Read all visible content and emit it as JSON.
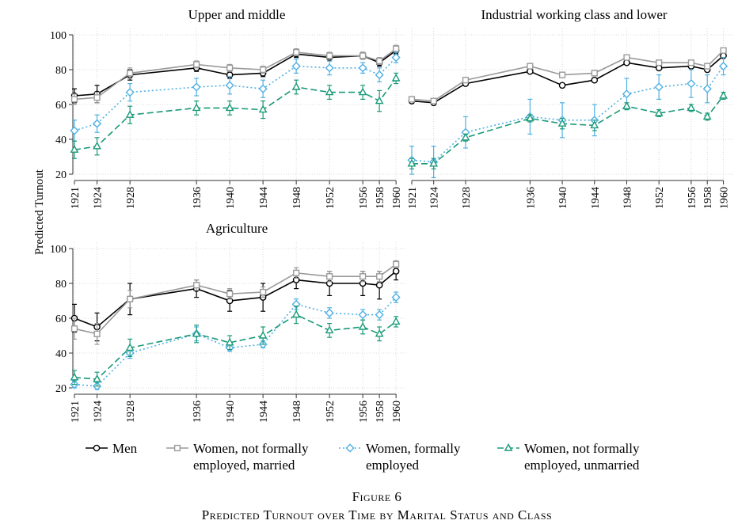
{
  "chart_data": {
    "type": "line",
    "y_axis_label": "Predicted Turnout",
    "y_ticks": [
      20,
      40,
      60,
      80,
      100
    ],
    "ylim": [
      20,
      100
    ],
    "x_ticks": [
      "1921",
      "1924",
      "1928",
      "1936",
      "1940",
      "1944",
      "1948",
      "1952",
      "1956",
      "1958",
      "1960"
    ],
    "series_styles": [
      {
        "name": "Men",
        "color": "#000000",
        "marker": "circle",
        "dash": "solid"
      },
      {
        "name": "Women, not formally employed, married",
        "color": "#9a9a9a",
        "marker": "square",
        "dash": "solid"
      },
      {
        "name": "Women, formally employed",
        "color": "#4fb0e2",
        "marker": "diamond",
        "dash": "dotted"
      },
      {
        "name": "Women, not formally employed, unmarried",
        "color": "#1a9a78",
        "marker": "triangle",
        "dash": "dashed"
      }
    ],
    "panels": [
      {
        "title": "Upper and middle",
        "series": [
          {
            "name": "Men",
            "values": [
              65,
              66,
              77,
              81,
              77,
              78,
              89,
              87,
              88,
              84,
              91
            ],
            "errors": [
              4,
              5,
              3,
              2,
              2,
              2,
              2,
              2,
              2,
              2,
              2
            ]
          },
          {
            "name": "Women, not formally employed, married",
            "values": [
              63,
              64,
              78,
              83,
              81,
              80,
              90,
              88,
              88,
              85,
              92
            ],
            "errors": [
              3,
              3,
              3,
              2,
              2,
              2,
              2,
              2,
              2,
              2,
              2
            ]
          },
          {
            "name": "Women, formally employed",
            "values": [
              45,
              49,
              67,
              70,
              71,
              69,
              82,
              81,
              81,
              77,
              87
            ],
            "errors": [
              6,
              5,
              5,
              5,
              5,
              5,
              4,
              4,
              3,
              4,
              3
            ]
          },
          {
            "name": "Women, not formally employed, unmarried",
            "values": [
              34,
              36,
              54,
              58,
              58,
              57,
              70,
              67,
              67,
              62,
              75
            ],
            "errors": [
              5,
              5,
              5,
              4,
              4,
              5,
              4,
              4,
              4,
              6,
              3
            ]
          }
        ]
      },
      {
        "title": "Industrial working class and lower",
        "series": [
          {
            "name": "Men",
            "values": [
              62,
              61,
              72,
              79,
              71,
              74,
              84,
              81,
              82,
              80,
              88
            ],
            "errors": [
              1,
              1,
              1,
              1,
              1,
              1,
              1,
              1,
              1,
              1,
              1
            ]
          },
          {
            "name": "Women, not formally employed, married",
            "values": [
              63,
              62,
              74,
              82,
              77,
              78,
              87,
              84,
              84,
              82,
              91
            ],
            "errors": [
              1,
              1,
              1,
              1,
              1,
              1,
              1,
              1,
              1,
              1,
              1
            ]
          },
          {
            "name": "Women, formally employed",
            "values": [
              28,
              27,
              44,
              53,
              51,
              51,
              66,
              70,
              72,
              69,
              82
            ],
            "errors": [
              8,
              9,
              9,
              10,
              10,
              9,
              9,
              7,
              8,
              8,
              5
            ]
          },
          {
            "name": "Women, not formally employed, unmarried",
            "values": [
              26,
              26,
              41,
              52,
              49,
              48,
              59,
              55,
              58,
              53,
              65
            ],
            "errors": [
              3,
              3,
              2,
              2,
              3,
              3,
              2,
              2,
              2,
              2,
              2
            ]
          }
        ]
      },
      {
        "title": "Agriculture",
        "series": [
          {
            "name": "Men",
            "values": [
              60,
              55,
              71,
              77,
              70,
              72,
              82,
              80,
              80,
              79,
              87
            ],
            "errors": [
              8,
              8,
              9,
              5,
              6,
              8,
              5,
              7,
              7,
              8,
              5
            ]
          },
          {
            "name": "Women, not formally employed, married",
            "values": [
              54,
              51,
              71,
              79,
              74,
              75,
              86,
              84,
              84,
              84,
              91
            ],
            "errors": [
              6,
              6,
              5,
              3,
              3,
              3,
              3,
              3,
              3,
              3,
              2
            ]
          },
          {
            "name": "Women, formally employed",
            "values": [
              22,
              21,
              40,
              51,
              43,
              45,
              68,
              63,
              62,
              62,
              72
            ],
            "errors": [
              2,
              2,
              3,
              4,
              2,
              2,
              3,
              3,
              3,
              3,
              3
            ]
          },
          {
            "name": "Women, not formally employed, unmarried",
            "values": [
              26,
              25,
              43,
              51,
              46,
              50,
              62,
              53,
              55,
              51,
              58
            ],
            "errors": [
              4,
              4,
              5,
              5,
              4,
              5,
              5,
              4,
              4,
              4,
              3
            ]
          }
        ]
      }
    ],
    "legend": [
      [
        "Men"
      ],
      [
        "Women, not formally",
        "employed, married"
      ],
      [
        "Women, formally",
        "employed"
      ],
      [
        "Women, not formally",
        "employed, unmarried"
      ]
    ],
    "caption": {
      "figure_number": "Figure 6",
      "title": "Predicted Turnout over Time by Marital Status and Class"
    }
  }
}
